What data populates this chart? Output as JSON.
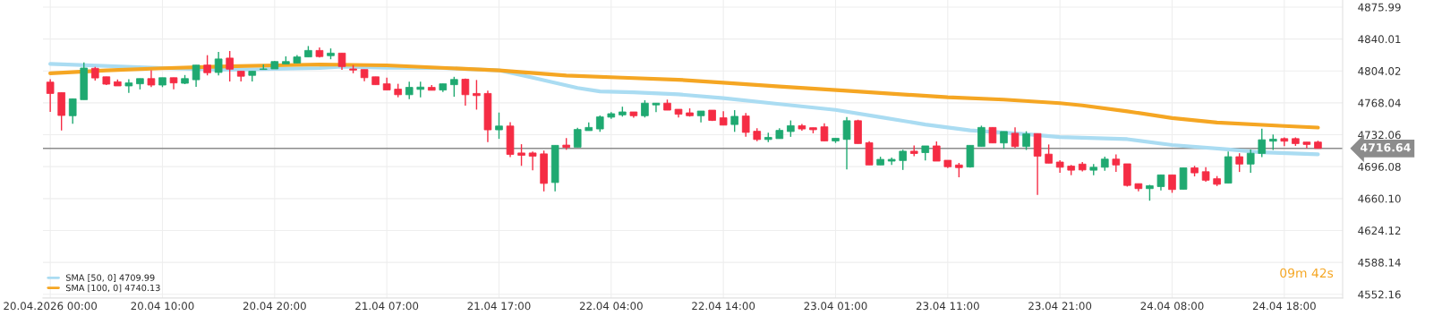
{
  "chart_data": {
    "type": "candlestick",
    "categories": [
      "20.04.2026 00:00",
      null,
      null,
      null,
      null,
      null,
      null,
      null,
      null,
      null,
      "20.04 10:00",
      null,
      null,
      null,
      null,
      null,
      null,
      null,
      null,
      null,
      "20.04 20:00",
      null,
      null,
      null,
      null,
      null,
      null,
      null,
      null,
      null,
      "21.04 07:00",
      null,
      null,
      null,
      null,
      null,
      null,
      null,
      null,
      null,
      "21.04 17:00",
      null,
      null,
      null,
      null,
      null,
      null,
      null,
      null,
      null,
      "22.04 04:00",
      null,
      null,
      null,
      null,
      null,
      null,
      null,
      null,
      null,
      "22.04 14:00",
      null,
      null,
      null,
      null,
      null,
      null,
      null,
      null,
      null,
      "23.04 01:00",
      null,
      null,
      null,
      null,
      null,
      null,
      null,
      null,
      null,
      "23.04 11:00",
      null,
      null,
      null,
      null,
      null,
      null,
      null,
      null,
      null,
      "23.04 21:00",
      null,
      null,
      null,
      null,
      null,
      null,
      null,
      null,
      null,
      "24.04 08:00",
      null,
      null,
      null,
      null,
      null,
      null,
      null,
      null,
      null,
      "24.04 18:00",
      null,
      null,
      null
    ],
    "ohlc": [
      [
        4791.4,
        4794.7,
        4757.8,
        4778.6
      ],
      [
        4779.6,
        4779.6,
        4736.9,
        4753.8
      ],
      [
        4753.5,
        4772.6,
        4744.5,
        4772.6
      ],
      [
        4771.6,
        4813.6,
        4771.6,
        4807.3
      ],
      [
        4807.0,
        4808.6,
        4793.1,
        4796.1
      ],
      [
        4797.4,
        4797.4,
        4788.1,
        4789.1
      ],
      [
        4791.8,
        4794.4,
        4787.1,
        4787.1
      ],
      [
        4787.1,
        4794.7,
        4779.2,
        4790.5
      ],
      [
        4789.5,
        4795.4,
        4783.2,
        4795.4
      ],
      [
        4795.4,
        4804.7,
        4785.8,
        4788.1
      ],
      [
        4788.1,
        4796.4,
        4785.8,
        4796.4
      ],
      [
        4796.4,
        4796.4,
        4783.2,
        4790.5
      ],
      [
        4790.1,
        4799.4,
        4789.1,
        4795.4
      ],
      [
        4794.1,
        4810.6,
        4786.2,
        4810.6
      ],
      [
        4810.6,
        4821.8,
        4799.0,
        4802.0
      ],
      [
        4802.3,
        4825.5,
        4799.0,
        4817.5
      ],
      [
        4818.5,
        4826.5,
        4792.1,
        4806.0
      ],
      [
        4803.7,
        4803.7,
        4792.1,
        4798.0
      ],
      [
        4799.0,
        4803.7,
        4792.1,
        4803.7
      ],
      [
        4805.7,
        4811.3,
        4805.7,
        4806.3
      ],
      [
        4806.3,
        4815.2,
        4806.3,
        4814.6
      ],
      [
        4811.9,
        4820.5,
        4811.9,
        4814.6
      ],
      [
        4812.9,
        4821.8,
        4812.9,
        4819.8
      ],
      [
        4819.8,
        4832.1,
        4819.8,
        4827.1
      ],
      [
        4827.1,
        4830.4,
        4819.2,
        4820.2
      ],
      [
        4821.2,
        4829.4,
        4817.2,
        4824.1
      ],
      [
        4824.1,
        4824.1,
        4805.3,
        4809.0
      ],
      [
        4806.3,
        4810.6,
        4801.4,
        4805.0
      ],
      [
        4805.6,
        4805.6,
        4792.4,
        4796.4
      ],
      [
        4797.4,
        4797.4,
        4788.5,
        4788.5
      ],
      [
        4789.5,
        4796.4,
        4782.5,
        4782.5
      ],
      [
        4783.5,
        4789.5,
        4774.3,
        4777.2
      ],
      [
        4777.2,
        4791.8,
        4772.3,
        4785.5
      ],
      [
        4783.2,
        4791.8,
        4774.3,
        4785.8
      ],
      [
        4785.5,
        4788.1,
        4782.2,
        4782.2
      ],
      [
        4782.5,
        4789.5,
        4780.2,
        4789.5
      ],
      [
        4788.5,
        4797.4,
        4774.9,
        4794.4
      ],
      [
        4794.7,
        4795.4,
        4765.0,
        4777.2
      ],
      [
        4778.6,
        4793.8,
        4760.4,
        4776.2
      ],
      [
        4778.6,
        4781.9,
        4723.7,
        4737.6
      ],
      [
        4737.6,
        4757.1,
        4727.4,
        4741.9
      ],
      [
        4741.9,
        4746.2,
        4706.9,
        4709.9
      ],
      [
        4711.5,
        4721.4,
        4697.0,
        4708.9
      ],
      [
        4711.5,
        4713.2,
        4692.0,
        4707.9
      ],
      [
        4710.5,
        4714.2,
        4668.2,
        4677.2
      ],
      [
        4678.2,
        4720.1,
        4668.2,
        4720.1
      ],
      [
        4720.4,
        4728.3,
        4715.1,
        4717.8
      ],
      [
        4718.1,
        4740.0,
        4718.1,
        4738.0
      ],
      [
        4736.7,
        4745.9,
        4736.7,
        4740.3
      ],
      [
        4738.6,
        4753.8,
        4735.3,
        4752.2
      ],
      [
        4751.9,
        4757.5,
        4749.9,
        4755.8
      ],
      [
        4754.5,
        4763.7,
        4752.5,
        4757.8
      ],
      [
        4757.8,
        4757.8,
        4751.2,
        4753.5
      ],
      [
        4753.5,
        4771.0,
        4751.5,
        4767.7
      ],
      [
        4765.7,
        4767.7,
        4757.5,
        4767.7
      ],
      [
        4767.7,
        4771.7,
        4759.8,
        4759.8
      ],
      [
        4760.8,
        4760.8,
        4751.5,
        4755.2
      ],
      [
        4756.8,
        4761.8,
        4752.5,
        4753.5
      ],
      [
        4753.5,
        4758.8,
        4745.9,
        4758.8
      ],
      [
        4759.8,
        4759.8,
        4747.6,
        4748.2
      ],
      [
        4751.2,
        4758.5,
        4742.9,
        4742.9
      ],
      [
        4743.6,
        4759.8,
        4735.3,
        4752.8
      ],
      [
        4753.2,
        4756.5,
        4729.7,
        4734.7
      ],
      [
        4736.0,
        4739.3,
        4724.8,
        4726.7
      ],
      [
        4726.7,
        4734.3,
        4723.8,
        4729.1
      ],
      [
        4727.7,
        4739.3,
        4727.7,
        4737.0
      ],
      [
        4735.7,
        4748.2,
        4729.7,
        4742.3
      ],
      [
        4742.3,
        4744.3,
        4736.7,
        4738.6
      ],
      [
        4740.0,
        4740.0,
        4733.7,
        4737.7
      ],
      [
        4741.0,
        4744.9,
        4725.1,
        4725.1
      ],
      [
        4725.1,
        4728.1,
        4722.8,
        4728.1
      ],
      [
        4726.8,
        4751.9,
        4693.1,
        4747.9
      ],
      [
        4747.9,
        4749.0,
        4722.1,
        4722.1
      ],
      [
        4723.1,
        4724.8,
        4698.0,
        4698.0
      ],
      [
        4698.0,
        4707.3,
        4698.0,
        4704.3
      ],
      [
        4702.3,
        4706.3,
        4698.0,
        4704.3
      ],
      [
        4703.0,
        4715.2,
        4692.4,
        4713.5
      ],
      [
        4713.5,
        4720.1,
        4707.9,
        4710.9
      ],
      [
        4711.9,
        4719.5,
        4703.0,
        4719.5
      ],
      [
        4719.5,
        4724.4,
        4702.3,
        4702.3
      ],
      [
        4703.3,
        4703.3,
        4694.4,
        4696.0
      ],
      [
        4698.0,
        4700.3,
        4684.1,
        4695.0
      ],
      [
        4695.7,
        4720.1,
        4695.0,
        4720.1
      ],
      [
        4718.8,
        4742.3,
        4718.8,
        4740.3
      ],
      [
        4740.3,
        4740.3,
        4722.8,
        4722.8
      ],
      [
        4722.8,
        4735.7,
        4716.2,
        4735.7
      ],
      [
        4733.7,
        4740.3,
        4717.2,
        4718.8
      ],
      [
        4718.8,
        4736.0,
        4714.9,
        4733.0
      ],
      [
        4733.4,
        4733.4,
        4664.3,
        4707.9
      ],
      [
        4710.2,
        4721.1,
        4700.0,
        4700.0
      ],
      [
        4701.3,
        4703.3,
        4689.1,
        4695.4
      ],
      [
        4696.7,
        4698.0,
        4686.5,
        4692.1
      ],
      [
        4699.0,
        4701.3,
        4690.7,
        4692.4
      ],
      [
        4692.1,
        4699.0,
        4686.5,
        4695.4
      ],
      [
        4695.4,
        4707.3,
        4691.4,
        4704.6
      ],
      [
        4704.6,
        4709.9,
        4690.1,
        4698.0
      ],
      [
        4699.3,
        4699.3,
        4673.6,
        4674.9
      ],
      [
        4676.9,
        4676.9,
        4668.3,
        4671.3
      ],
      [
        4671.3,
        4675.6,
        4657.7,
        4674.6
      ],
      [
        4673.6,
        4686.8,
        4669.3,
        4686.8
      ],
      [
        4686.8,
        4686.8,
        4666.6,
        4670.3
      ],
      [
        4670.6,
        4694.7,
        4670.6,
        4694.7
      ],
      [
        4694.7,
        4697.0,
        4685.1,
        4689.1
      ],
      [
        4690.4,
        4695.4,
        4679.2,
        4680.8
      ],
      [
        4682.5,
        4685.5,
        4674.2,
        4676.2
      ],
      [
        4677.5,
        4713.2,
        4677.5,
        4707.3
      ],
      [
        4707.3,
        4711.2,
        4690.1,
        4699.0
      ],
      [
        4699.0,
        4715.5,
        4689.1,
        4711.2
      ],
      [
        4711.0,
        4739.0,
        4706.9,
        4726.4
      ],
      [
        4724.8,
        4732.4,
        4714.9,
        4727.1
      ],
      [
        4727.7,
        4729.1,
        4719.2,
        4724.8
      ],
      [
        4727.7,
        4729.1,
        4719.5,
        4722.1
      ],
      [
        4723.8,
        4723.8,
        4716.8,
        4721.1
      ],
      [
        4723.8,
        4725.4,
        4716.64,
        4716.64
      ]
    ],
    "series": [
      {
        "type": "line",
        "name": "SMA [50, 0] 4709.99",
        "color": "#aadcf2",
        "values": [
          4811.9,
          null,
          null,
          null,
          null,
          null,
          null,
          null,
          null,
          null,
          4807.3,
          null,
          null,
          null,
          null,
          4805.3,
          null,
          null,
          null,
          null,
          4806.3,
          null,
          null,
          null,
          4807.3,
          null,
          4809.0,
          null,
          null,
          null,
          4807.6,
          null,
          null,
          null,
          null,
          4807.3,
          null,
          null,
          null,
          null,
          4804.7,
          null,
          null,
          4796.4,
          null,
          null,
          null,
          4784.8,
          null,
          4780.9,
          null,
          null,
          4779.9,
          null,
          null,
          null,
          4777.6,
          null,
          null,
          null,
          4773.3,
          null,
          null,
          null,
          null,
          4766.7,
          null,
          null,
          null,
          null,
          4760.1,
          null,
          null,
          null,
          4751.9,
          null,
          null,
          null,
          4743.6,
          null,
          null,
          null,
          4737.0,
          null,
          null,
          null,
          null,
          4732.7,
          null,
          null,
          4729.4,
          null,
          4728.7,
          null,
          null,
          null,
          4727.1,
          null,
          null,
          null,
          4720.5,
          null,
          null,
          null,
          null,
          4715.5,
          null,
          null,
          4712.2,
          null,
          null,
          null,
          null,
          4709.99
        ]
      },
      {
        "type": "line",
        "name": "SMA [100, 0] 4740.13",
        "color": "#f5a623",
        "values": [
          4801.4,
          null,
          null,
          null,
          null,
          4804.7,
          null,
          null,
          null,
          null,
          4807.0,
          null,
          null,
          null,
          null,
          4809.0,
          null,
          null,
          null,
          null,
          4810.3,
          null,
          null,
          null,
          4811.3,
          null,
          null,
          null,
          null,
          null,
          4810.3,
          null,
          null,
          null,
          null,
          null,
          null,
          null,
          null,
          null,
          4804.7,
          null,
          null,
          null,
          null,
          null,
          4798.8,
          null,
          null,
          null,
          null,
          4796.4,
          null,
          null,
          null,
          null,
          4794.1,
          null,
          null,
          null,
          4790.8,
          null,
          null,
          null,
          null,
          4786.5,
          null,
          null,
          null,
          null,
          null,
          4781.6,
          null,
          null,
          null,
          null,
          null,
          null,
          null,
          null,
          4774.3,
          null,
          null,
          null,
          null,
          4771.7,
          null,
          null,
          null,
          null,
          4767.7,
          null,
          4765.1,
          null,
          null,
          null,
          4758.5,
          null,
          null,
          null,
          4750.9,
          null,
          null,
          null,
          4745.9,
          null,
          null,
          null,
          null,
          null,
          4741.9,
          null,
          null,
          4740.13
        ]
      }
    ],
    "ylim": [
      4548,
      4884
    ],
    "yticks": [
      4552.16,
      4588.14,
      4624.12,
      {
        "value": 4660.1,
        "label": "4660.10"
      },
      4696.08,
      4732.06,
      4768.04,
      4804.02,
      4840.01,
      4875.99
    ],
    "ref_lines": [
      {
        "axis": "y",
        "value": 4716.64,
        "label": "4716.64",
        "color": "#8c8c8c"
      }
    ],
    "annotations": [
      "09m 42s"
    ],
    "grid": true,
    "legend": "bottom left"
  }
}
